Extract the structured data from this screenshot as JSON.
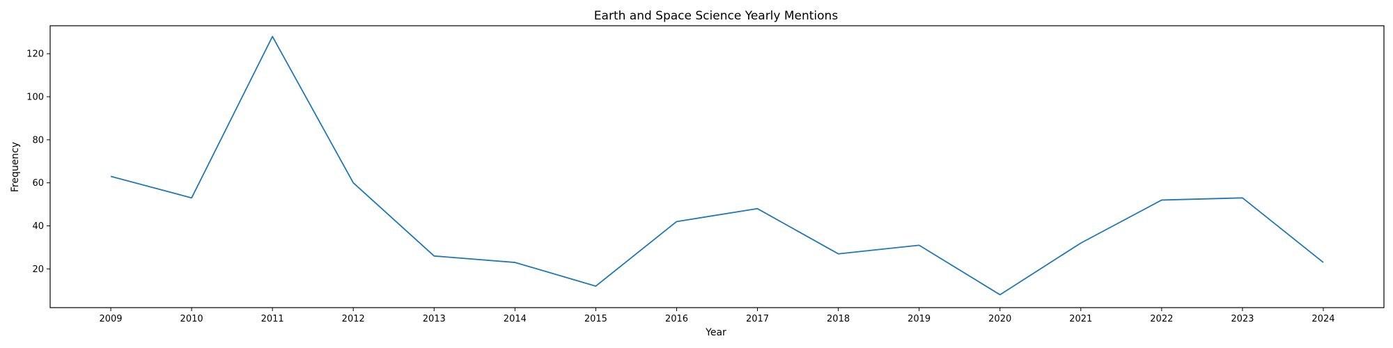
{
  "chart_data": {
    "type": "line",
    "title": "Earth and Space Science Yearly Mentions",
    "xlabel": "Year",
    "ylabel": "Frequency",
    "categories": [
      "2009",
      "2010",
      "2011",
      "2012",
      "2013",
      "2014",
      "2015",
      "2016",
      "2017",
      "2018",
      "2019",
      "2020",
      "2021",
      "2022",
      "2023",
      "2024"
    ],
    "series": [
      {
        "values": [
          63,
          53,
          128,
          60,
          26,
          23,
          12,
          42,
          48,
          27,
          31,
          8,
          32,
          52,
          53,
          23
        ],
        "color": "#1f77b4"
      }
    ],
    "yticks": [
      20,
      40,
      60,
      80,
      100,
      120
    ],
    "ylim": [
      2.0,
      133.0
    ],
    "grid": false,
    "legend": "none"
  }
}
